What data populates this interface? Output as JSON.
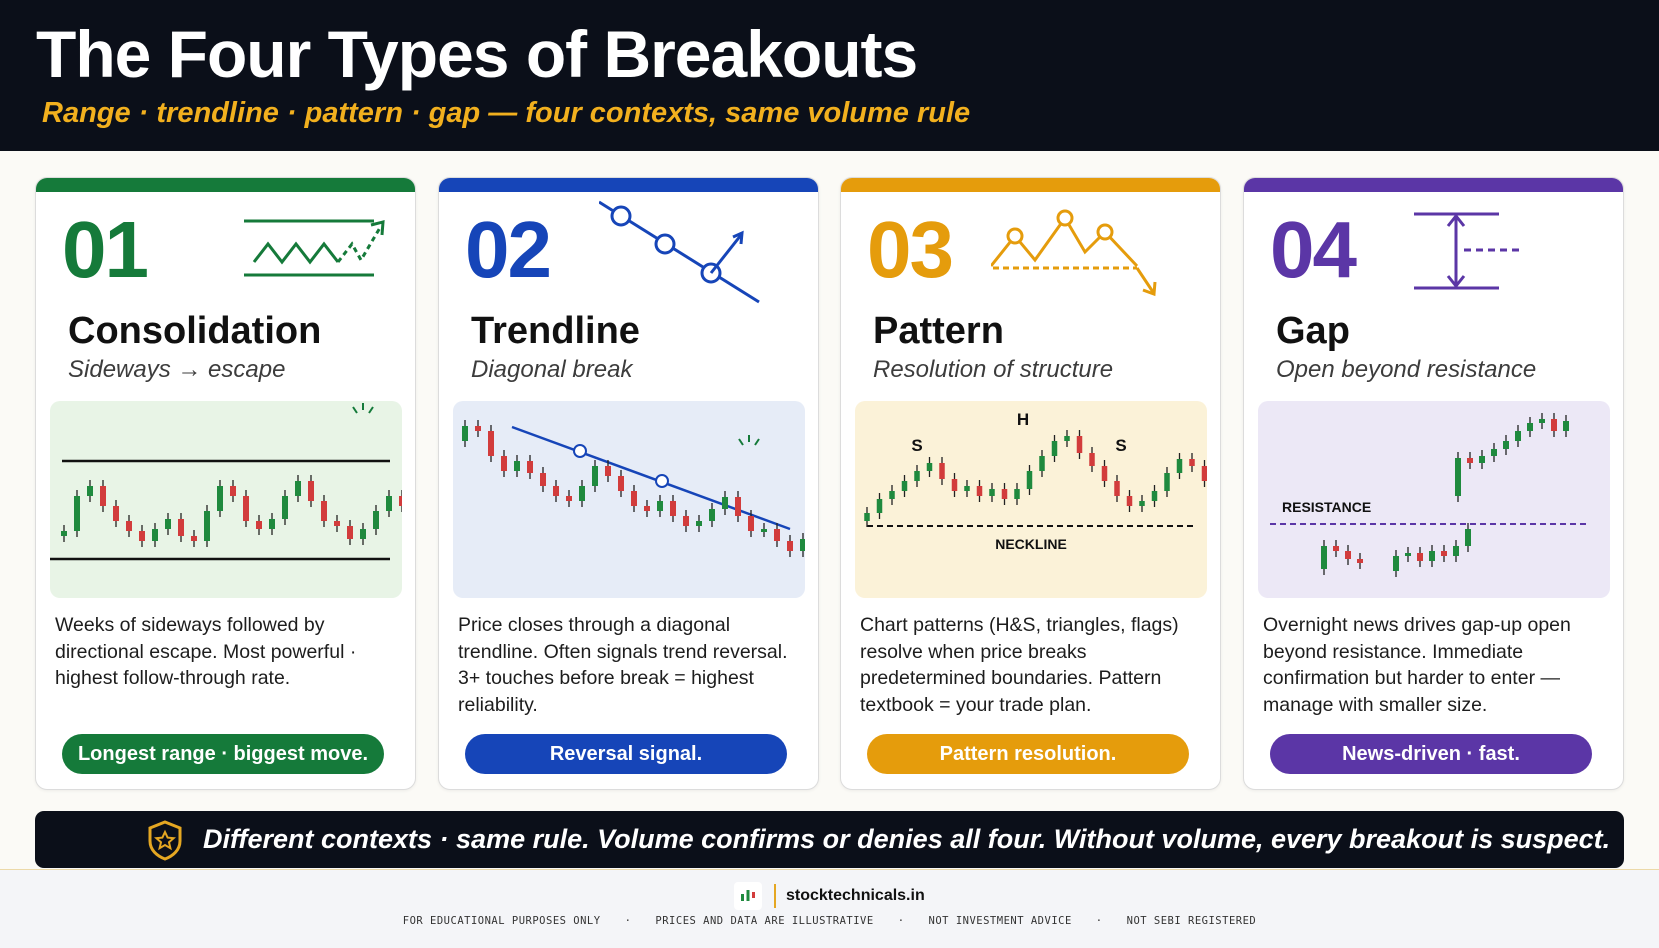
{
  "header": {
    "title": "The Four Types of Breakouts",
    "subtitle": "Range · trendline · pattern · gap — four contexts, same volume rule"
  },
  "cards": [
    {
      "number": "01",
      "title": "Consolidation",
      "tagline": "Sideways → escape",
      "description": "Weeks of sideways followed by directional escape. Most powerful · highest follow-through rate.",
      "pill": "Longest range · biggest move.",
      "accent": "#157a3a",
      "chart_bg": "#e8f4e6",
      "icon": "zigzag-range-breakout-icon"
    },
    {
      "number": "02",
      "title": "Trendline",
      "tagline": "Diagonal break",
      "description": "Price closes through a diagonal trendline. Often signals trend reversal. 3+ touches before break = highest reliability.",
      "pill": "Reversal signal.",
      "accent": "#1645b8",
      "chart_bg": "#e6ecf7",
      "icon": "trendline-touches-icon"
    },
    {
      "number": "03",
      "title": "Pattern",
      "tagline": "Resolution of structure",
      "description": "Chart patterns (H&S, triangles, flags) resolve when price breaks predetermined boundaries. Pattern textbook = your trade plan.",
      "pill": "Pattern resolution.",
      "accent": "#e59c0c",
      "chart_bg": "#fbf2d8",
      "icon": "head-and-shoulders-icon",
      "chart_labels": {
        "left_shoulder": "S",
        "head": "H",
        "right_shoulder": "S",
        "neckline": "NECKLINE"
      }
    },
    {
      "number": "04",
      "title": "Gap",
      "tagline": "Open beyond resistance",
      "description": "Overnight news drives gap-up open beyond resistance. Immediate confirmation but harder to enter — manage with smaller size.",
      "pill": "News-driven · fast.",
      "accent": "#5b36a6",
      "chart_bg": "#ece8f6",
      "icon": "gap-measure-icon",
      "chart_labels": {
        "resistance": "RESISTANCE"
      }
    }
  ],
  "banner": {
    "text": "Different contexts · same rule. Volume confirms or denies all four. Without volume, every breakout is suspect.",
    "icon": "shield-star-icon"
  },
  "footer": {
    "site": "stocktechnicals.in",
    "logo": "candlestick-logo-icon",
    "disclaimers": [
      "FOR EDUCATIONAL PURPOSES ONLY",
      "PRICES AND DATA ARE ILLUSTRATIVE",
      "NOT INVESTMENT ADVICE",
      "NOT SEBI REGISTERED"
    ]
  }
}
